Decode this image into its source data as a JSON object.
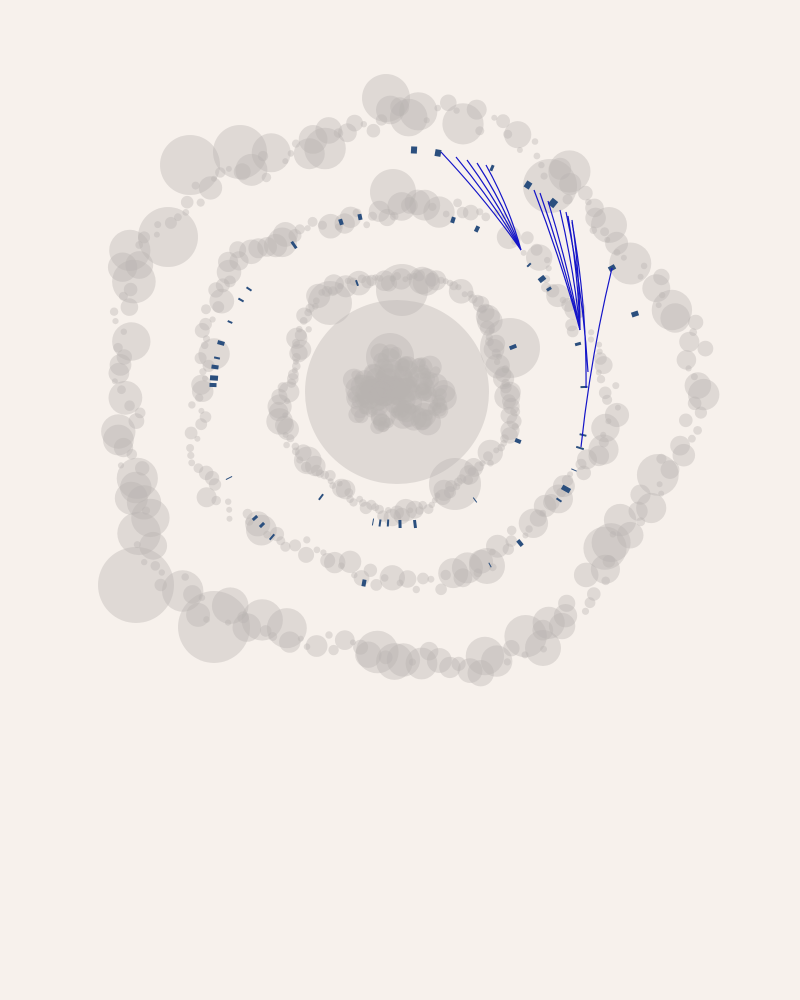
{
  "colors": {
    "background": "#f7f1ec",
    "node_fill": "#b8b4b1",
    "tick": "#2b4f7e",
    "link": "#1414c8"
  },
  "layout_style": "concentric circle-packing rings with radial tick marks and highlighted links"
}
